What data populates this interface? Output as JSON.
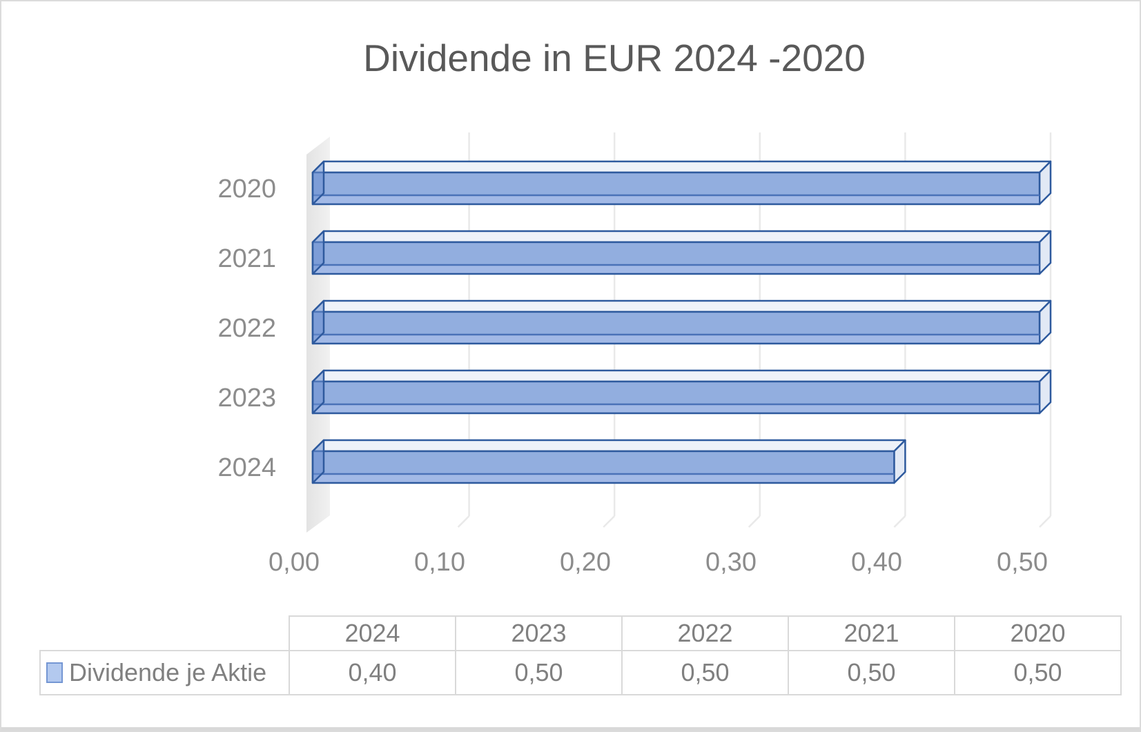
{
  "chart": {
    "title": "Dividende in EUR 2024 -2020"
  },
  "chart_data": {
    "type": "bar",
    "style": "3d-clustered-bar",
    "orientation": "horizontal",
    "title": "Dividende in EUR 2024 -2020",
    "categories": [
      "2020",
      "2021",
      "2022",
      "2023",
      "2024"
    ],
    "series": [
      {
        "name": "Dividende je Aktie",
        "values": [
          0.5,
          0.5,
          0.5,
          0.5,
          0.4
        ]
      }
    ],
    "xlim": [
      0,
      0.5
    ],
    "x_ticks": [
      0,
      0.1,
      0.2,
      0.3,
      0.4,
      0.5
    ],
    "x_tick_labels": [
      "0,00",
      "0,10",
      "0,20",
      "0,30",
      "0,40",
      "0,50"
    ],
    "grid": true,
    "legend_position": "data-table-bottom"
  },
  "data_table": {
    "columns": [
      "2024",
      "2023",
      "2022",
      "2021",
      "2020"
    ],
    "rows": [
      {
        "label": "Dividende je Aktie",
        "values": [
          "0,40",
          "0,50",
          "0,50",
          "0,50",
          "0,50"
        ]
      }
    ]
  },
  "colors": {
    "bar_front": "#92AEDF",
    "bar_top": "#EEF2F9",
    "bar_side": "#E2E9F5",
    "bar_cap": "#6B8FD0",
    "bar_outline": "#2E5A9E",
    "bar_inner_line": "#4A72B8",
    "bar_bottom_strip": "#A2B9E6",
    "wall_left": "#E3E3E3",
    "wall_right": "#F1F1F1",
    "gridline": "#E9E9E9",
    "title_text": "#595959",
    "axis_text": "#8C8C8C",
    "table_text": "#808080",
    "table_border": "#D9D9D9",
    "legend_swatch_fill": "#B3C9EF",
    "legend_swatch_border": "#7496D3"
  }
}
